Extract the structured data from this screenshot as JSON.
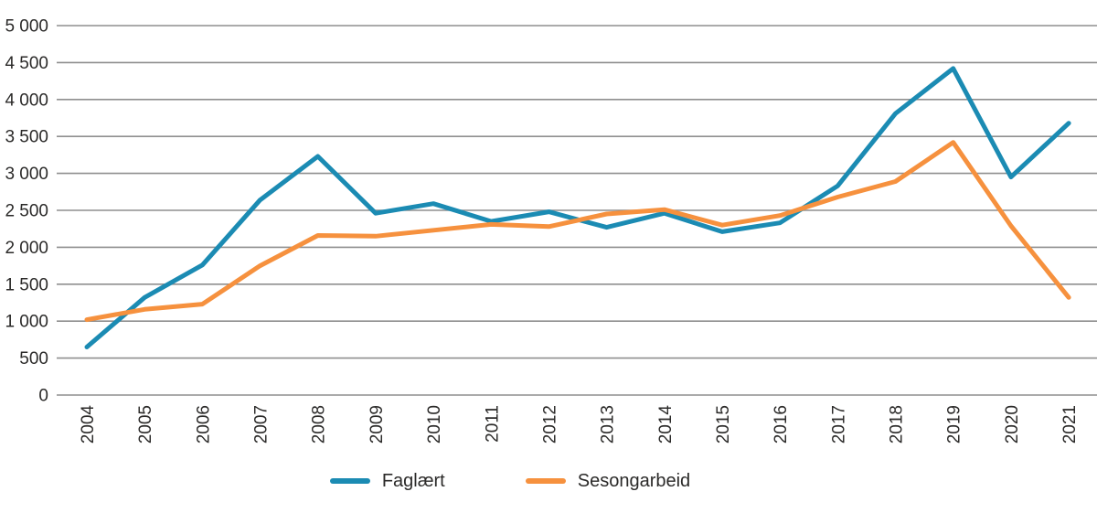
{
  "chart_data": {
    "type": "line",
    "title": "",
    "xlabel": "",
    "ylabel": "",
    "grid": "horizontal",
    "legend_position": "bottom",
    "ylim": [
      0,
      5000
    ],
    "ytick_step": 500,
    "gridline_color": "#8f8f8f",
    "axis_text_color": "#2b2a29",
    "x": [
      "2004",
      "2005",
      "2006",
      "2007",
      "2008",
      "2009",
      "2010",
      "2011",
      "2012",
      "2013",
      "2014",
      "2015",
      "2016",
      "2017",
      "2018",
      "2019",
      "2020",
      "2021"
    ],
    "yticks": [
      {
        "value": 0,
        "label": "0"
      },
      {
        "value": 500,
        "label": "500"
      },
      {
        "value": 1000,
        "label": "1 000"
      },
      {
        "value": 1500,
        "label": "1 500"
      },
      {
        "value": 2000,
        "label": "2 000"
      },
      {
        "value": 2500,
        "label": "2 500"
      },
      {
        "value": 3000,
        "label": "3 000"
      },
      {
        "value": 3500,
        "label": "3 500"
      },
      {
        "value": 4000,
        "label": "4 000"
      },
      {
        "value": 4500,
        "label": "4 500"
      },
      {
        "value": 5000,
        "label": "5 000"
      }
    ],
    "series": [
      {
        "name": "Faglært",
        "color": "#1b8bb3",
        "values": [
          650,
          1320,
          1760,
          2640,
          3230,
          2460,
          2590,
          2350,
          2480,
          2270,
          2460,
          2210,
          2330,
          2830,
          3810,
          4420,
          2950,
          3680
        ]
      },
      {
        "name": "Sesongarbeid",
        "color": "#f6913e",
        "values": [
          1020,
          1160,
          1230,
          1750,
          2160,
          2150,
          2230,
          2310,
          2280,
          2450,
          2510,
          2300,
          2430,
          2680,
          2890,
          3420,
          2290,
          1320
        ]
      }
    ]
  }
}
